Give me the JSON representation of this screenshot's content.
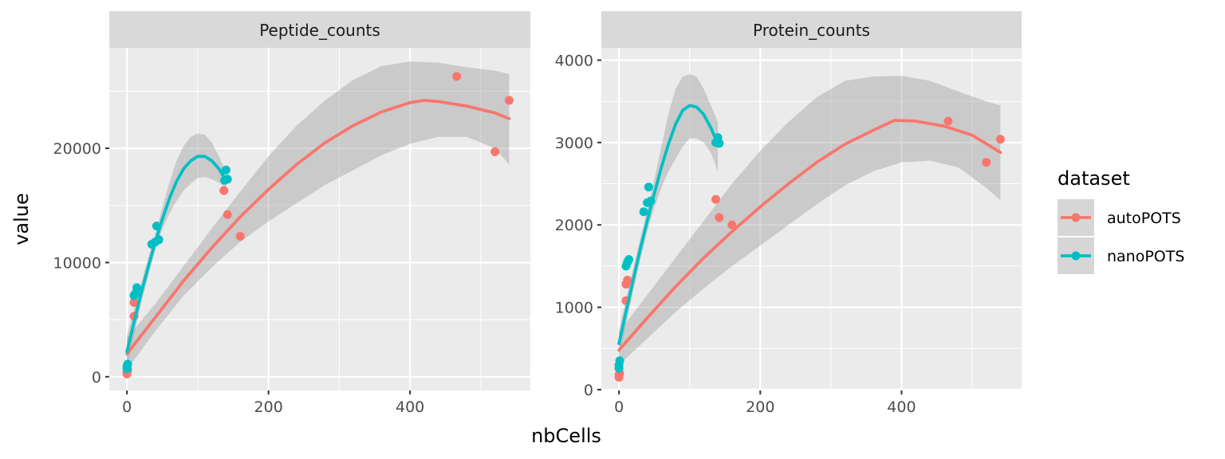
{
  "chart_data": {
    "type": "scatter",
    "facets": [
      {
        "strip_label": "Peptide_counts",
        "xlim": [
          -25,
          570
        ],
        "ylim": [
          -1200,
          28800
        ],
        "x_ticks": [
          0,
          200,
          400
        ],
        "x_tick_labels": [
          "0",
          "200",
          "400"
        ],
        "y_ticks": [
          0,
          10000,
          20000
        ],
        "y_tick_labels": [
          "0",
          "10000",
          "20000"
        ],
        "series": [
          {
            "name": "autoPOTS",
            "points": [
              [
                0,
                250
              ],
              [
                0,
                400
              ],
              [
                1,
                600
              ],
              [
                10,
                5300
              ],
              [
                10,
                6500
              ],
              [
                137,
                16300
              ],
              [
                142,
                14200
              ],
              [
                160,
                12300
              ],
              [
                466,
                26300
              ],
              [
                520,
                19700
              ],
              [
                540,
                24200
              ]
            ],
            "fit": [
              [
                0,
                2000
              ],
              [
                40,
                5200
              ],
              [
                80,
                8400
              ],
              [
                120,
                11300
              ],
              [
                160,
                14000
              ],
              [
                200,
                16400
              ],
              [
                240,
                18600
              ],
              [
                280,
                20500
              ],
              [
                320,
                22000
              ],
              [
                360,
                23200
              ],
              [
                400,
                24000
              ],
              [
                420,
                24200
              ],
              [
                440,
                24100
              ],
              [
                480,
                23700
              ],
              [
                520,
                23100
              ],
              [
                540,
                22600
              ]
            ],
            "band_upper": [
              [
                0,
                3400
              ],
              [
                40,
                6400
              ],
              [
                80,
                9700
              ],
              [
                120,
                13000
              ],
              [
                160,
                16200
              ],
              [
                200,
                19300
              ],
              [
                240,
                22000
              ],
              [
                280,
                24200
              ],
              [
                320,
                26000
              ],
              [
                360,
                27200
              ],
              [
                400,
                27600
              ],
              [
                440,
                27500
              ],
              [
                480,
                27100
              ],
              [
                520,
                26800
              ],
              [
                540,
                26500
              ]
            ],
            "band_lower": [
              [
                0,
                600
              ],
              [
                40,
                4000
              ],
              [
                80,
                7100
              ],
              [
                120,
                9600
              ],
              [
                160,
                11800
              ],
              [
                200,
                13600
              ],
              [
                240,
                15200
              ],
              [
                280,
                16800
              ],
              [
                320,
                18100
              ],
              [
                360,
                19400
              ],
              [
                400,
                20400
              ],
              [
                440,
                21000
              ],
              [
                480,
                21000
              ],
              [
                520,
                20000
              ],
              [
                540,
                18600
              ]
            ]
          },
          {
            "name": "nanoPOTS",
            "points": [
              [
                0,
                700
              ],
              [
                0,
                900
              ],
              [
                1,
                1100
              ],
              [
                10,
                7100
              ],
              [
                12,
                7300
              ],
              [
                14,
                7800
              ],
              [
                35,
                11600
              ],
              [
                40,
                11800
              ],
              [
                42,
                13200
              ],
              [
                45,
                12000
              ],
              [
                138,
                17200
              ],
              [
                140,
                18100
              ],
              [
                142,
                17300
              ]
            ],
            "fit": [
              [
                0,
                2200
              ],
              [
                10,
                4800
              ],
              [
                20,
                7300
              ],
              [
                30,
                9600
              ],
              [
                40,
                11800
              ],
              [
                50,
                13800
              ],
              [
                60,
                15600
              ],
              [
                70,
                17100
              ],
              [
                80,
                18200
              ],
              [
                90,
                18900
              ],
              [
                100,
                19300
              ],
              [
                110,
                19300
              ],
              [
                120,
                18900
              ],
              [
                130,
                18200
              ],
              [
                140,
                17200
              ]
            ],
            "band_upper": [
              [
                0,
                3600
              ],
              [
                10,
                5900
              ],
              [
                20,
                8200
              ],
              [
                30,
                10400
              ],
              [
                40,
                12500
              ],
              [
                50,
                14800
              ],
              [
                60,
                17000
              ],
              [
                70,
                18900
              ],
              [
                80,
                20200
              ],
              [
                90,
                21000
              ],
              [
                100,
                21300
              ],
              [
                110,
                21200
              ],
              [
                120,
                20500
              ],
              [
                130,
                19300
              ],
              [
                140,
                17900
              ]
            ],
            "band_lower": [
              [
                0,
                800
              ],
              [
                10,
                3700
              ],
              [
                20,
                6400
              ],
              [
                30,
                8800
              ],
              [
                40,
                11100
              ],
              [
                50,
                12900
              ],
              [
                60,
                14300
              ],
              [
                70,
                15400
              ],
              [
                80,
                16300
              ],
              [
                90,
                16900
              ],
              [
                100,
                17400
              ],
              [
                110,
                17500
              ],
              [
                120,
                17300
              ],
              [
                130,
                17000
              ],
              [
                140,
                16500
              ]
            ]
          }
        ]
      },
      {
        "strip_label": "Protein_counts",
        "xlim": [
          -25,
          570
        ],
        "ylim": [
          -10,
          4150
        ],
        "x_ticks": [
          0,
          200,
          400
        ],
        "x_tick_labels": [
          "0",
          "200",
          "400"
        ],
        "y_ticks": [
          0,
          1000,
          2000,
          3000,
          4000
        ],
        "y_tick_labels": [
          "0",
          "1000",
          "2000",
          "3000",
          "4000"
        ],
        "series": [
          {
            "name": "autoPOTS",
            "points": [
              [
                0,
                150
              ],
              [
                0,
                180
              ],
              [
                1,
                200
              ],
              [
                10,
                1080
              ],
              [
                10,
                1280
              ],
              [
                12,
                1330
              ],
              [
                137,
                2310
              ],
              [
                142,
                2090
              ],
              [
                160,
                2000
              ],
              [
                466,
                3260
              ],
              [
                520,
                2760
              ],
              [
                540,
                3040
              ]
            ],
            "fit": [
              [
                0,
                480
              ],
              [
                40,
                870
              ],
              [
                80,
                1250
              ],
              [
                120,
                1600
              ],
              [
                160,
                1920
              ],
              [
                200,
                2220
              ],
              [
                240,
                2500
              ],
              [
                280,
                2760
              ],
              [
                320,
                2980
              ],
              [
                360,
                3150
              ],
              [
                390,
                3270
              ],
              [
                420,
                3260
              ],
              [
                460,
                3200
              ],
              [
                500,
                3090
              ],
              [
                540,
                2880
              ]
            ],
            "band_upper": [
              [
                0,
                700
              ],
              [
                40,
                1150
              ],
              [
                80,
                1600
              ],
              [
                120,
                2050
              ],
              [
                160,
                2500
              ],
              [
                200,
                2900
              ],
              [
                240,
                3250
              ],
              [
                280,
                3550
              ],
              [
                320,
                3750
              ],
              [
                360,
                3800
              ],
              [
                400,
                3810
              ],
              [
                440,
                3750
              ],
              [
                480,
                3620
              ],
              [
                520,
                3500
              ],
              [
                540,
                3450
              ]
            ],
            "band_lower": [
              [
                0,
                300
              ],
              [
                40,
                620
              ],
              [
                80,
                940
              ],
              [
                120,
                1230
              ],
              [
                160,
                1500
              ],
              [
                200,
                1750
              ],
              [
                240,
                2000
              ],
              [
                280,
                2250
              ],
              [
                320,
                2480
              ],
              [
                360,
                2650
              ],
              [
                400,
                2760
              ],
              [
                440,
                2780
              ],
              [
                480,
                2700
              ],
              [
                520,
                2450
              ],
              [
                540,
                2300
              ]
            ]
          },
          {
            "name": "nanoPOTS",
            "points": [
              [
                0,
                260
              ],
              [
                0,
                300
              ],
              [
                1,
                350
              ],
              [
                10,
                1500
              ],
              [
                12,
                1550
              ],
              [
                14,
                1580
              ],
              [
                35,
                2160
              ],
              [
                40,
                2270
              ],
              [
                42,
                2460
              ],
              [
                45,
                2290
              ],
              [
                137,
                3000
              ],
              [
                140,
                3060
              ],
              [
                142,
                2990
              ]
            ],
            "fit": [
              [
                0,
                560
              ],
              [
                10,
                950
              ],
              [
                20,
                1330
              ],
              [
                30,
                1700
              ],
              [
                40,
                2050
              ],
              [
                50,
                2380
              ],
              [
                60,
                2700
              ],
              [
                70,
                2980
              ],
              [
                80,
                3220
              ],
              [
                90,
                3390
              ],
              [
                100,
                3450
              ],
              [
                110,
                3430
              ],
              [
                120,
                3340
              ],
              [
                130,
                3180
              ],
              [
                140,
                2980
              ]
            ],
            "band_upper": [
              [
                0,
                720
              ],
              [
                10,
                1100
              ],
              [
                20,
                1470
              ],
              [
                30,
                1830
              ],
              [
                40,
                2180
              ],
              [
                50,
                2550
              ],
              [
                60,
                2950
              ],
              [
                70,
                3350
              ],
              [
                80,
                3650
              ],
              [
                90,
                3800
              ],
              [
                100,
                3830
              ],
              [
                110,
                3800
              ],
              [
                120,
                3650
              ],
              [
                130,
                3450
              ],
              [
                140,
                3250
              ]
            ],
            "band_lower": [
              [
                0,
                400
              ],
              [
                10,
                800
              ],
              [
                20,
                1190
              ],
              [
                30,
                1570
              ],
              [
                40,
                1920
              ],
              [
                50,
                2210
              ],
              [
                60,
                2450
              ],
              [
                70,
                2650
              ],
              [
                80,
                2800
              ],
              [
                90,
                2950
              ],
              [
                100,
                3050
              ],
              [
                110,
                3050
              ],
              [
                120,
                3000
              ],
              [
                130,
                2880
              ],
              [
                140,
                2650
              ]
            ]
          }
        ]
      }
    ],
    "xlabel": "nbCells",
    "ylabel": "value",
    "legend": {
      "title": "dataset",
      "position": "right",
      "entries": [
        "autoPOTS",
        "nanoPOTS"
      ]
    },
    "colors": {
      "autoPOTS": "#F8766D",
      "nanoPOTS": "#00BFC4",
      "band": "#999999",
      "panel_bg": "#EBEBEB",
      "strip_bg": "#D9D9D9",
      "grid": "#FFFFFF"
    },
    "grid": true
  }
}
